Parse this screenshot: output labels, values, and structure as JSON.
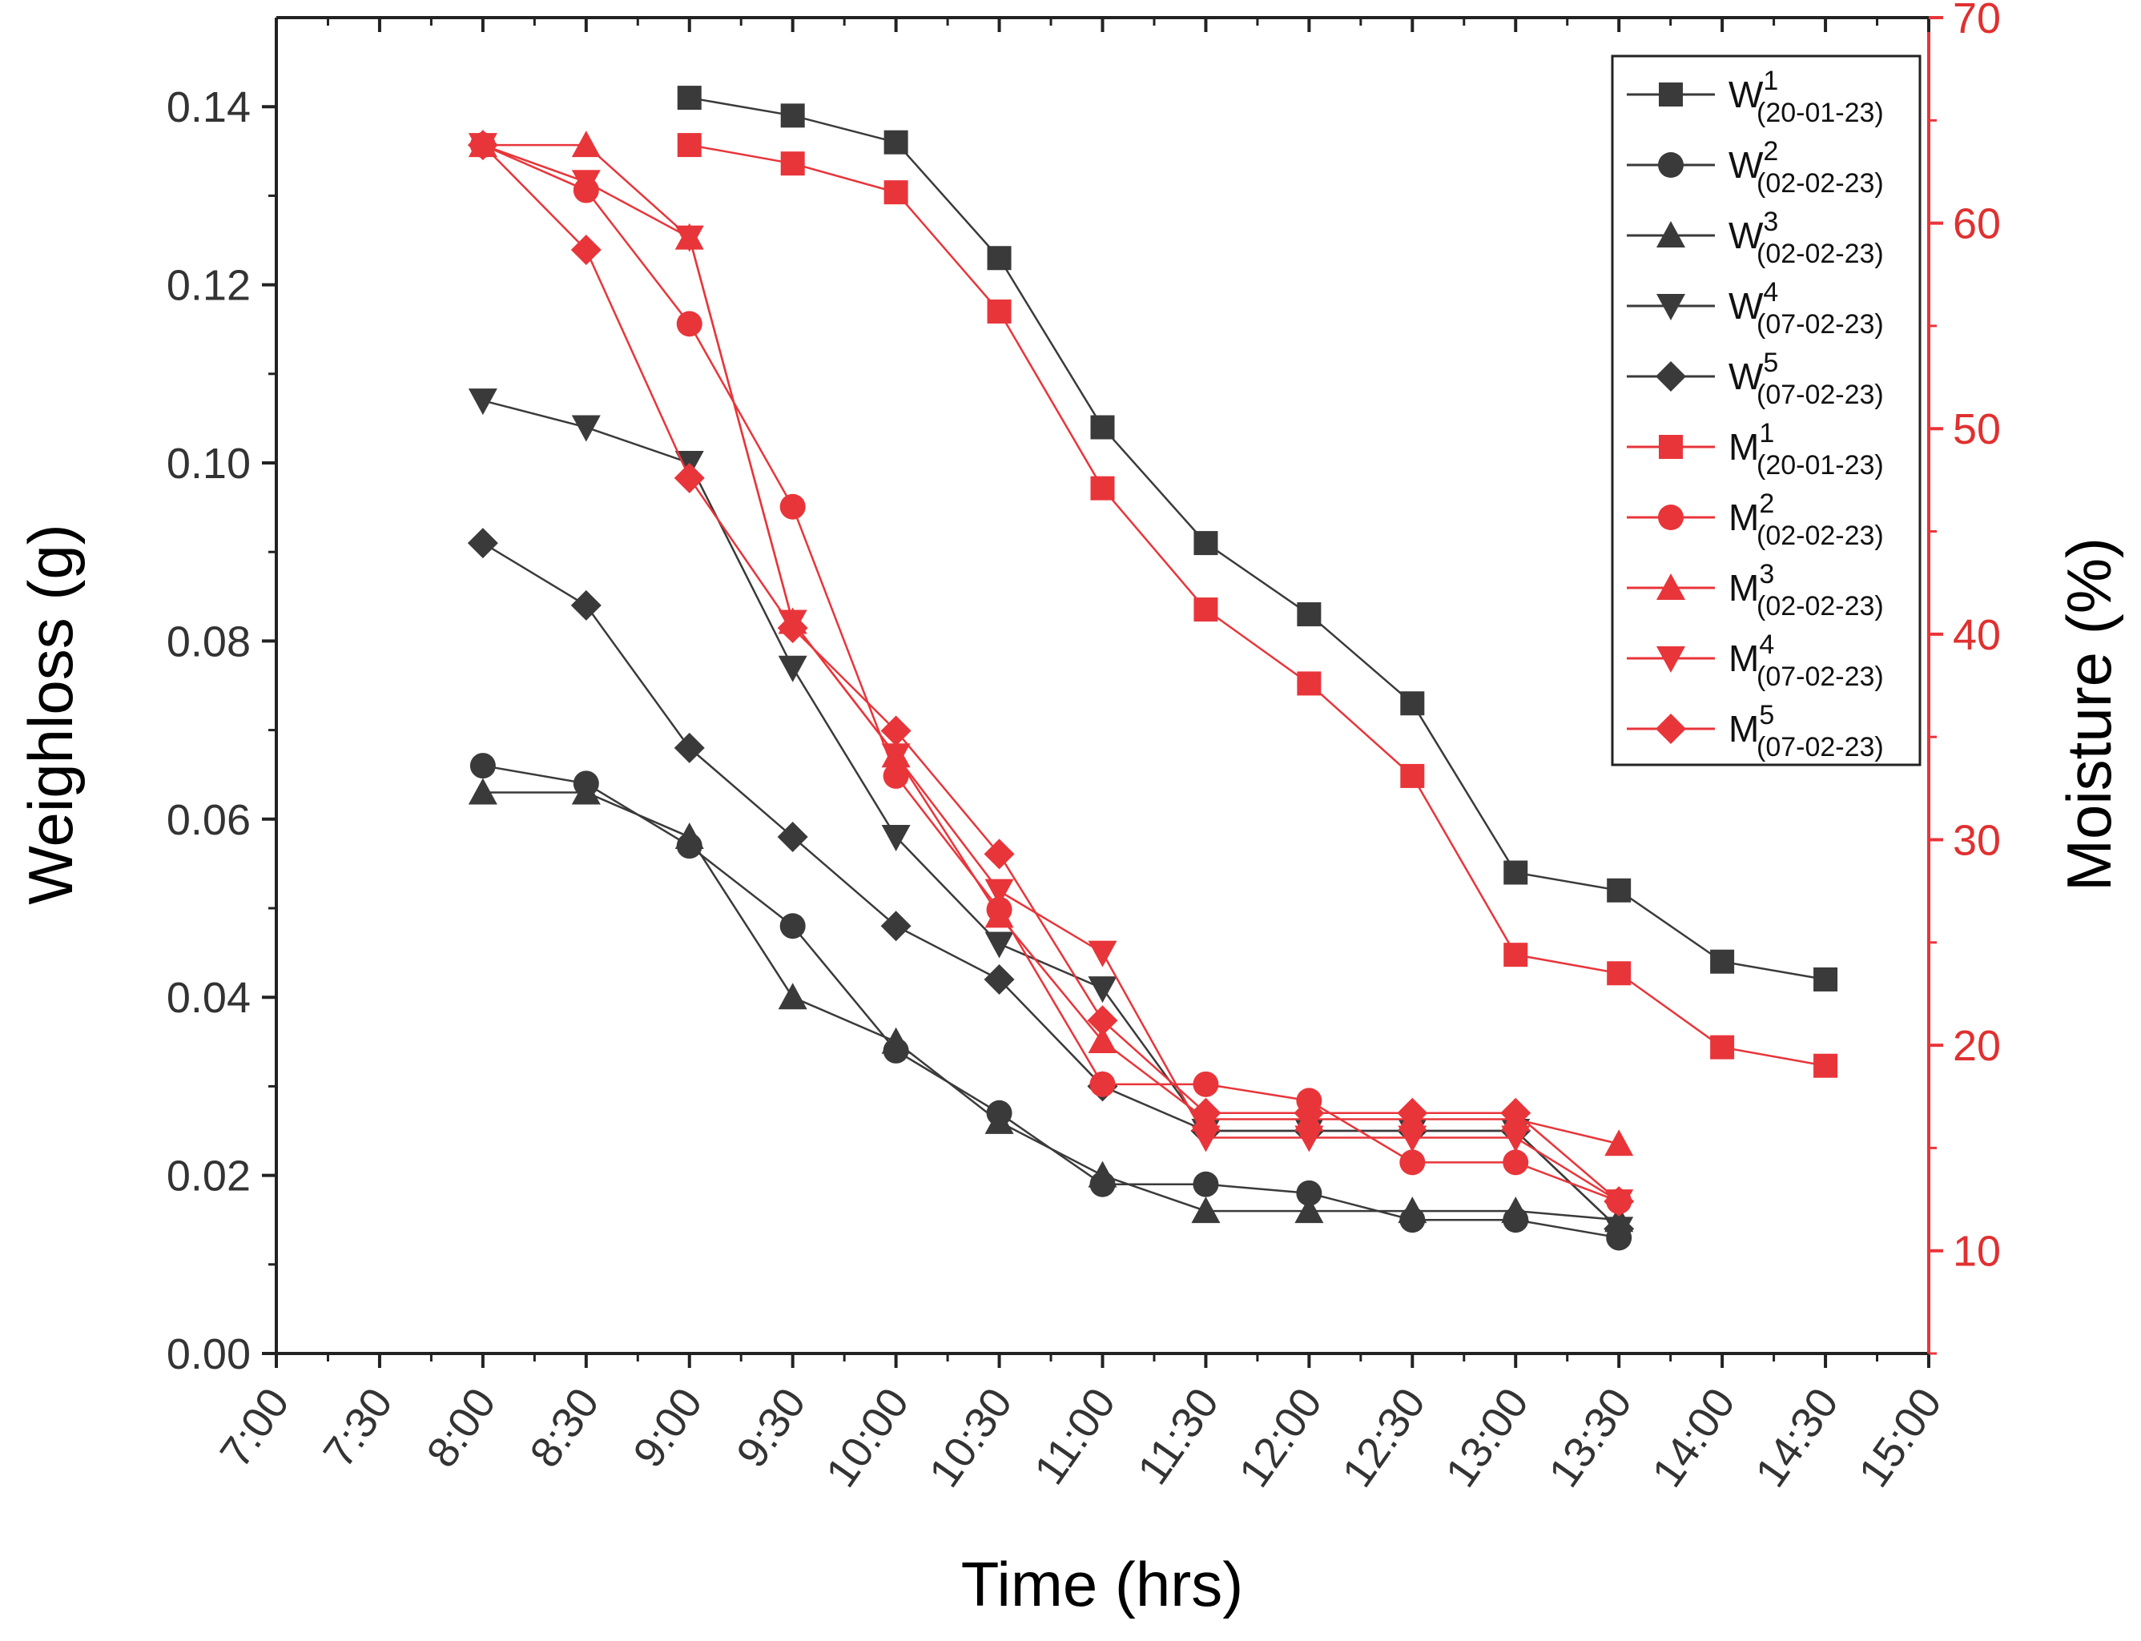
{
  "chart_data": {
    "type": "line",
    "xlabel": "Time (hrs)",
    "ylabel": "Weighloss (g)",
    "y2label": "Moisture (%)",
    "x_ticks": [
      "7:00",
      "7:30",
      "8:00",
      "8:30",
      "9:00",
      "9:30",
      "10:00",
      "10:30",
      "11:00",
      "11:30",
      "12:00",
      "12:30",
      "13:00",
      "13:30",
      "14:00",
      "14:30",
      "15:00"
    ],
    "xlim": [
      "7:00",
      "15:00"
    ],
    "ylim": [
      0,
      0.15
    ],
    "y_ticks": [
      "0.00",
      "0.02",
      "0.04",
      "0.06",
      "0.08",
      "0.10",
      "0.12",
      "0.14"
    ],
    "y2lim": [
      5,
      70
    ],
    "y2_ticks": [
      "10",
      "20",
      "30",
      "40",
      "50",
      "60",
      "70"
    ],
    "grid": false,
    "legend_position": "top-right",
    "colors": {
      "weight": "#3a3a3a",
      "moisture": "#e8353a"
    },
    "series": [
      {
        "base": "W",
        "sup": "1",
        "sub": "(20-01-23)",
        "axis": "left",
        "marker": "square",
        "x": [
          "9:00",
          "9:30",
          "10:00",
          "10:30",
          "11:00",
          "11:30",
          "12:00",
          "12:30",
          "13:00",
          "13:30",
          "14:00",
          "14:30"
        ],
        "values": [
          0.141,
          0.139,
          0.136,
          0.123,
          0.104,
          0.091,
          0.083,
          0.073,
          0.054,
          0.052,
          0.044,
          0.042
        ]
      },
      {
        "base": "W",
        "sup": "2",
        "sub": "(02-02-23)",
        "axis": "left",
        "marker": "circle",
        "x": [
          "8:00",
          "8:30",
          "9:00",
          "9:30",
          "10:00",
          "10:30",
          "11:00",
          "11:30",
          "12:00",
          "12:30",
          "13:00",
          "13:30"
        ],
        "values": [
          0.066,
          0.064,
          0.057,
          0.048,
          0.034,
          0.027,
          0.019,
          0.019,
          0.018,
          0.015,
          0.015,
          0.013
        ]
      },
      {
        "base": "W",
        "sup": "3",
        "sub": "(02-02-23)",
        "axis": "left",
        "marker": "triangle-up",
        "x": [
          "8:00",
          "8:30",
          "9:00",
          "9:30",
          "10:00",
          "10:30",
          "11:00",
          "11:30",
          "12:00",
          "12:30",
          "13:00",
          "13:30"
        ],
        "values": [
          0.063,
          0.063,
          0.058,
          0.04,
          0.035,
          0.026,
          0.02,
          0.016,
          0.016,
          0.016,
          0.016,
          0.015
        ]
      },
      {
        "base": "W",
        "sup": "4",
        "sub": "(07-02-23)",
        "axis": "left",
        "marker": "triangle-down",
        "x": [
          "8:00",
          "8:30",
          "9:00",
          "9:30",
          "10:00",
          "10:30",
          "11:00",
          "11:30",
          "12:00",
          "12:30",
          "13:00",
          "13:30"
        ],
        "values": [
          0.107,
          0.104,
          0.1,
          0.077,
          0.058,
          0.046,
          0.041,
          0.025,
          0.025,
          0.025,
          0.025,
          0.014
        ]
      },
      {
        "base": "W",
        "sup": "5",
        "sub": "(07-02-23)",
        "axis": "left",
        "marker": "diamond",
        "x": [
          "8:00",
          "8:30",
          "9:00",
          "9:30",
          "10:00",
          "10:30",
          "11:00",
          "11:30",
          "12:00",
          "12:30",
          "13:00",
          "13:30"
        ],
        "values": [
          0.091,
          0.084,
          0.068,
          0.058,
          0.048,
          0.042,
          0.03,
          0.025,
          0.025,
          0.025,
          0.025,
          0.014
        ]
      },
      {
        "base": "M",
        "sup": "1",
        "sub": "(20-01-23)",
        "axis": "right",
        "marker": "square",
        "x": [
          "9:00",
          "9:30",
          "10:00",
          "10:30",
          "11:00",
          "11:30",
          "12:00",
          "12:30",
          "13:00",
          "13:30",
          "14:00",
          "14:30"
        ],
        "values": [
          63.8,
          62.9,
          61.5,
          55.7,
          47.1,
          41.2,
          37.6,
          33.1,
          24.4,
          23.5,
          19.9,
          19.0
        ]
      },
      {
        "base": "M",
        "sup": "2",
        "sub": "(02-02-23)",
        "axis": "right",
        "marker": "circle",
        "x": [
          "8:00",
          "8:30",
          "9:00",
          "9:30",
          "10:00",
          "10:30",
          "11:00",
          "11:30",
          "12:00",
          "12:30",
          "13:00",
          "13:30"
        ],
        "values": [
          63.8,
          61.6,
          55.1,
          46.2,
          33.1,
          26.6,
          18.1,
          18.1,
          17.3,
          14.3,
          14.3,
          12.4
        ]
      },
      {
        "base": "M",
        "sup": "3",
        "sub": "(02-02-23)",
        "axis": "right",
        "marker": "triangle-up",
        "x": [
          "8:00",
          "8:30",
          "9:00",
          "9:30",
          "10:00",
          "10:30",
          "11:00",
          "11:30",
          "12:00",
          "12:30",
          "13:00",
          "13:30"
        ],
        "values": [
          63.8,
          63.8,
          59.3,
          40.6,
          34.1,
          26.3,
          20.2,
          16.4,
          16.4,
          16.4,
          16.4,
          15.2
        ]
      },
      {
        "base": "M",
        "sup": "4",
        "sub": "(07-02-23)",
        "axis": "right",
        "marker": "triangle-down",
        "x": [
          "8:00",
          "8:30",
          "9:00",
          "9:30",
          "10:00",
          "10:30",
          "11:00",
          "11:30",
          "12:00",
          "12:30",
          "13:00",
          "13:30"
        ],
        "values": [
          63.8,
          62.0,
          59.3,
          40.6,
          34.1,
          27.5,
          24.5,
          15.5,
          15.5,
          15.5,
          15.5,
          12.4
        ]
      },
      {
        "base": "M",
        "sup": "5",
        "sub": "(07-02-23)",
        "axis": "right",
        "marker": "diamond",
        "x": [
          "8:00",
          "8:30",
          "9:00",
          "9:30",
          "10:00",
          "10:30",
          "11:00",
          "11:30",
          "12:00",
          "12:30",
          "13:00",
          "13:30"
        ],
        "values": [
          63.8,
          58.7,
          47.6,
          40.3,
          35.3,
          29.3,
          21.2,
          16.7,
          16.7,
          16.7,
          16.7,
          12.4
        ]
      }
    ]
  }
}
